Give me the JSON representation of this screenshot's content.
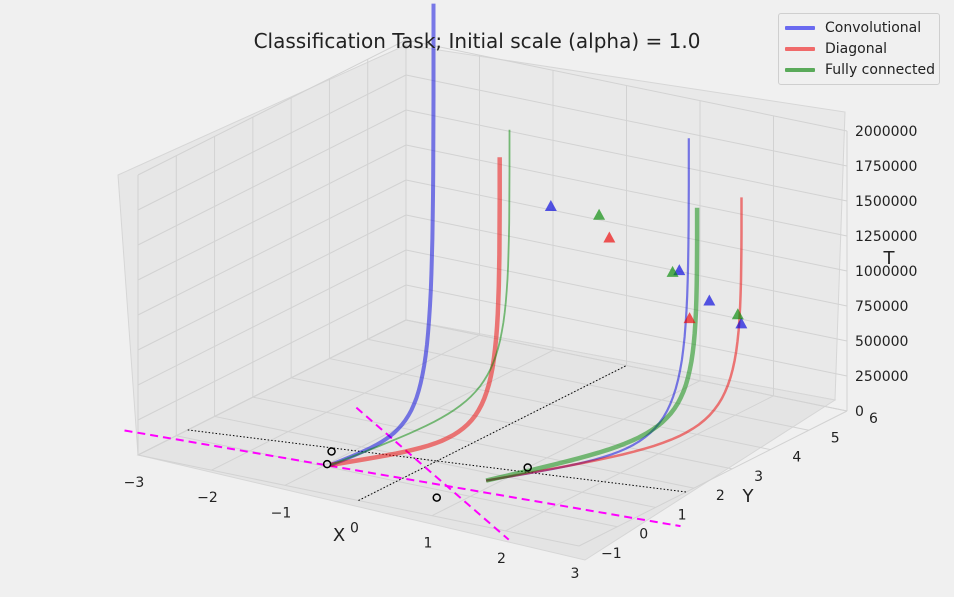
{
  "chart_data": {
    "type": "line3d",
    "title": "Classification Task; Initial scale (alpha) = 1.0",
    "xlabel": "X",
    "ylabel": "Y",
    "zlabel": "T",
    "xlim": [
      -3,
      3
    ],
    "ylim": [
      -1,
      6
    ],
    "zlim": [
      0,
      2000000
    ],
    "x_ticks": [
      "−3",
      "−2",
      "−1",
      "0",
      "1",
      "2",
      "3"
    ],
    "y_ticks": [
      "−1",
      "0",
      "1",
      "2",
      "3",
      "4",
      "5",
      "6"
    ],
    "z_ticks": [
      "0",
      "250000",
      "500000",
      "750000",
      "1000000",
      "1250000",
      "1500000",
      "1750000",
      "2000000"
    ],
    "grid": true,
    "legend_position": "top-right",
    "colors": {
      "Convolutional": "#0000dd",
      "Diagonal": "#ee0000",
      "Fully connected": "#008800",
      "separators": "#ff00ff",
      "axes_reference": "#000000"
    },
    "series": [
      {
        "name": "Convolutional",
        "start_points": [
          [
            -0.95,
            0.1
          ],
          [
            0.85,
            0.7
          ]
        ],
        "marker": "triangle-up"
      },
      {
        "name": "Diagonal",
        "start_points": [
          [
            -0.95,
            0.1
          ],
          [
            0.85,
            0.7
          ]
        ],
        "marker": "triangle-up"
      },
      {
        "name": "Fully connected",
        "start_points": [
          [
            -0.95,
            0.1
          ],
          [
            0.85,
            0.7
          ]
        ],
        "marker": "triangle-up"
      }
    ],
    "data_points": [
      {
        "x": -1.2,
        "y": 0.6
      },
      {
        "x": -1.0,
        "y": 0.1
      },
      {
        "x": 0.7,
        "y": -0.3
      },
      {
        "x": 1.0,
        "y": 1.5
      }
    ]
  },
  "legend": {
    "items": [
      {
        "label": "Convolutional",
        "color": "#5a5af0"
      },
      {
        "label": "Diagonal",
        "color": "#f06060"
      },
      {
        "label": "Fully connected",
        "color": "#5aaa5a"
      }
    ]
  }
}
